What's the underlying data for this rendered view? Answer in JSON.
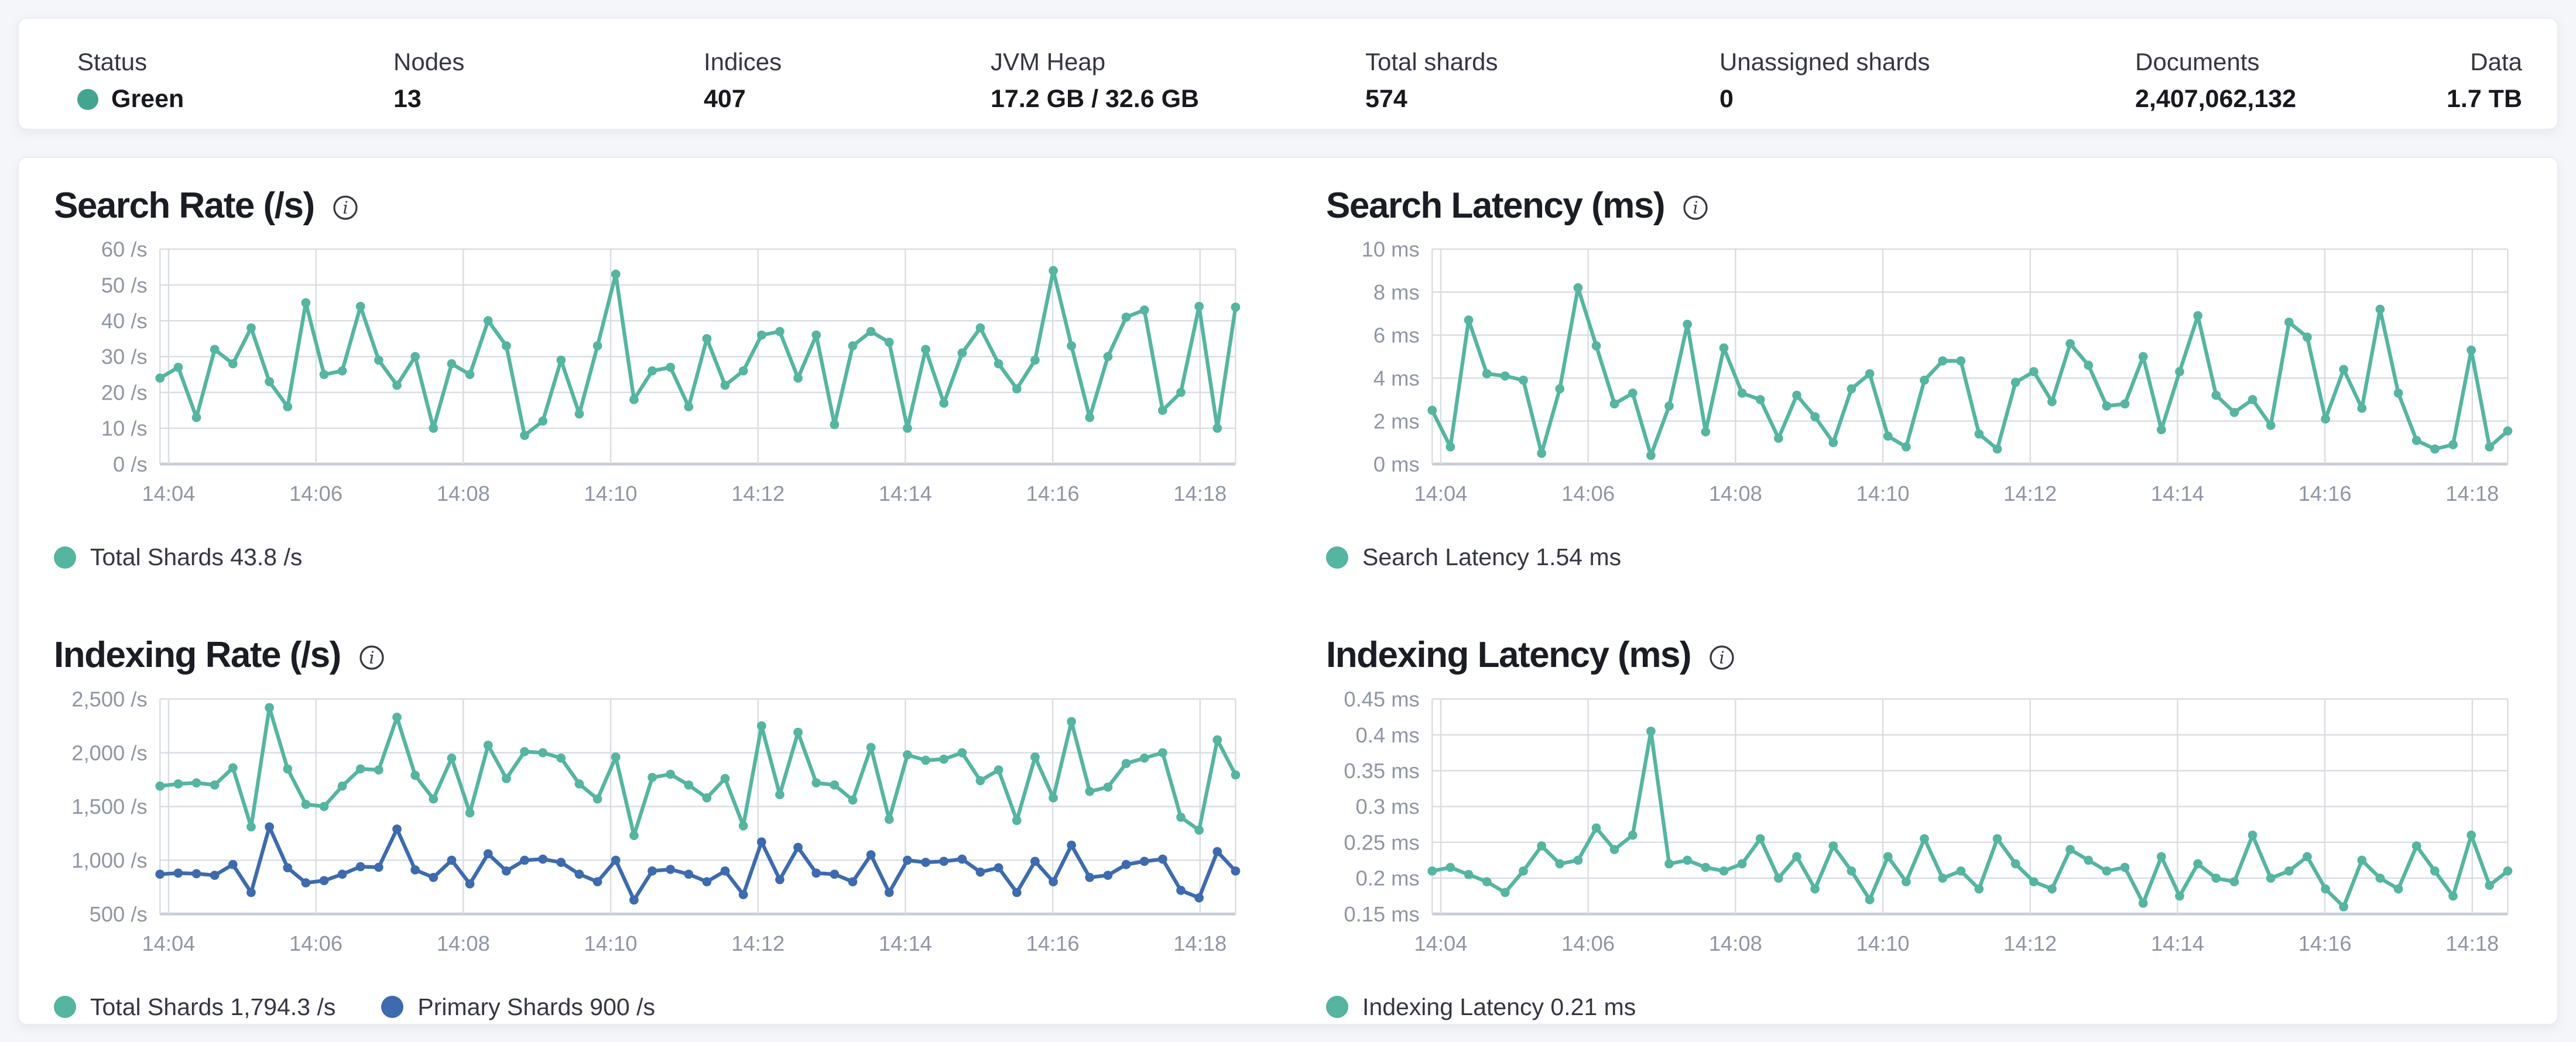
{
  "header": {
    "stats": [
      {
        "label": "Status",
        "value": "Green",
        "type": "status"
      },
      {
        "label": "Nodes",
        "value": "13"
      },
      {
        "label": "Indices",
        "value": "407"
      },
      {
        "label": "JVM Heap",
        "value": "17.2 GB / 32.6 GB"
      },
      {
        "label": "Total shards",
        "value": "574"
      },
      {
        "label": "Unassigned shards",
        "value": "0"
      },
      {
        "label": "Documents",
        "value": "2,407,062,132"
      },
      {
        "label": "Data",
        "value": "1.7 TB"
      }
    ]
  },
  "icons": {
    "info_icon": "circled-i",
    "status_icon": "health-dot"
  },
  "colors": {
    "teal": "#55B5A0",
    "blue": "#3D6BAD",
    "status_green": "#43A58F",
    "grid": "#D9DDE3",
    "axis": "#C7CDD7",
    "tick_text": "#8E96A3"
  },
  "chart_data": [
    {
      "type": "line",
      "title": "Search Rate (/s)",
      "x_ticks": {
        "labels": [
          "14:04",
          "14:06",
          "14:08",
          "14:10",
          "14:12",
          "14:14",
          "14:16",
          "14:18"
        ],
        "fractions": [
          0.008,
          0.145,
          0.282,
          0.419,
          0.556,
          0.693,
          0.83,
          0.967
        ]
      },
      "y_axis": {
        "min": 0,
        "max": 60,
        "tick_labels": [
          "60 /s",
          "50 /s",
          "40 /s",
          "30 /s",
          "20 /s",
          "10 /s",
          "0 /s"
        ]
      },
      "grid": true,
      "legend_position": "bottom",
      "series": [
        {
          "name": "Total Shards",
          "legend": "Total Shards 43.8 /s",
          "color_key": "teal",
          "values": [
            24,
            27,
            13,
            32,
            28,
            38,
            23,
            16,
            45,
            25,
            26,
            44,
            29,
            22,
            30,
            10,
            28,
            25,
            40,
            33,
            8,
            12,
            29,
            14,
            33,
            53,
            18,
            26,
            27,
            16,
            35,
            22,
            26,
            36,
            37,
            24,
            36,
            11,
            33,
            37,
            34,
            10,
            32,
            17,
            31,
            38,
            28,
            21,
            29,
            54,
            33,
            13,
            30,
            41,
            43,
            15,
            20,
            44,
            10,
            43.8
          ]
        }
      ]
    },
    {
      "type": "line",
      "title": "Search Latency (ms)",
      "x_ticks": {
        "labels": [
          "14:04",
          "14:06",
          "14:08",
          "14:10",
          "14:12",
          "14:14",
          "14:16",
          "14:18"
        ],
        "fractions": [
          0.008,
          0.145,
          0.282,
          0.419,
          0.556,
          0.693,
          0.83,
          0.967
        ]
      },
      "y_axis": {
        "min": 0,
        "max": 10,
        "tick_labels": [
          "10 ms",
          "8 ms",
          "6 ms",
          "4 ms",
          "2 ms",
          "0 ms"
        ]
      },
      "grid": true,
      "legend_position": "bottom",
      "series": [
        {
          "name": "Search Latency",
          "legend": "Search Latency 1.54 ms",
          "color_key": "teal",
          "values": [
            2.5,
            0.8,
            6.7,
            4.2,
            4.1,
            3.9,
            0.5,
            3.5,
            8.2,
            5.5,
            2.8,
            3.3,
            0.4,
            2.7,
            6.5,
            1.5,
            5.4,
            3.3,
            3.0,
            1.2,
            3.2,
            2.2,
            1.0,
            3.5,
            4.2,
            1.3,
            0.8,
            3.9,
            4.8,
            4.8,
            1.4,
            0.7,
            3.8,
            4.3,
            2.9,
            5.6,
            4.6,
            2.7,
            2.8,
            5.0,
            1.6,
            4.3,
            6.9,
            3.2,
            2.4,
            3.0,
            1.8,
            6.6,
            5.9,
            2.1,
            4.4,
            2.6,
            7.2,
            3.3,
            1.1,
            0.7,
            0.9,
            5.3,
            0.8,
            1.54
          ]
        }
      ]
    },
    {
      "type": "line",
      "title": "Indexing Rate (/s)",
      "x_ticks": {
        "labels": [
          "14:04",
          "14:06",
          "14:08",
          "14:10",
          "14:12",
          "14:14",
          "14:16",
          "14:18"
        ],
        "fractions": [
          0.008,
          0.145,
          0.282,
          0.419,
          0.556,
          0.693,
          0.83,
          0.967
        ]
      },
      "y_axis": {
        "min": 500,
        "max": 2500,
        "tick_labels": [
          "2,500 /s",
          "2,000 /s",
          "1,500 /s",
          "1,000 /s",
          "500 /s"
        ]
      },
      "grid": true,
      "legend_position": "bottom",
      "series": [
        {
          "name": "Total Shards",
          "legend": "Total Shards 1,794.3 /s",
          "color_key": "teal",
          "values": [
            1690,
            1710,
            1720,
            1700,
            1860,
            1310,
            2420,
            1850,
            1520,
            1500,
            1690,
            1850,
            1840,
            2330,
            1790,
            1570,
            1950,
            1440,
            2070,
            1760,
            2010,
            2000,
            1950,
            1710,
            1570,
            1960,
            1230,
            1770,
            1800,
            1700,
            1580,
            1760,
            1320,
            2250,
            1610,
            2190,
            1720,
            1700,
            1560,
            2050,
            1380,
            1980,
            1930,
            1940,
            2000,
            1740,
            1840,
            1370,
            1960,
            1580,
            2290,
            1640,
            1680,
            1900,
            1950,
            2000,
            1400,
            1280,
            2120,
            1794.3
          ]
        },
        {
          "name": "Primary Shards",
          "legend": "Primary Shards 900 /s",
          "color_key": "blue",
          "values": [
            870,
            880,
            875,
            860,
            960,
            700,
            1310,
            930,
            790,
            810,
            870,
            940,
            935,
            1290,
            910,
            840,
            1000,
            780,
            1060,
            900,
            1000,
            1010,
            980,
            870,
            800,
            1000,
            630,
            900,
            915,
            870,
            800,
            900,
            680,
            1170,
            820,
            1120,
            880,
            870,
            800,
            1050,
            700,
            1000,
            980,
            990,
            1010,
            890,
            930,
            700,
            990,
            800,
            1140,
            840,
            860,
            960,
            990,
            1010,
            720,
            650,
            1080,
            900
          ]
        }
      ]
    },
    {
      "type": "line",
      "title": "Indexing Latency (ms)",
      "x_ticks": {
        "labels": [
          "14:04",
          "14:06",
          "14:08",
          "14:10",
          "14:12",
          "14:14",
          "14:16",
          "14:18"
        ],
        "fractions": [
          0.008,
          0.145,
          0.282,
          0.419,
          0.556,
          0.693,
          0.83,
          0.967
        ]
      },
      "y_axis": {
        "min": 0.15,
        "max": 0.45,
        "tick_labels": [
          "0.45 ms",
          "0.4 ms",
          "0.35 ms",
          "0.3 ms",
          "0.25 ms",
          "0.2 ms",
          "0.15 ms"
        ]
      },
      "grid": true,
      "legend_position": "bottom",
      "series": [
        {
          "name": "Indexing Latency",
          "legend": "Indexing Latency 0.21 ms",
          "color_key": "teal",
          "values": [
            0.21,
            0.215,
            0.205,
            0.195,
            0.18,
            0.21,
            0.245,
            0.22,
            0.225,
            0.27,
            0.24,
            0.26,
            0.405,
            0.22,
            0.225,
            0.215,
            0.21,
            0.22,
            0.255,
            0.2,
            0.23,
            0.185,
            0.245,
            0.21,
            0.17,
            0.23,
            0.195,
            0.255,
            0.2,
            0.21,
            0.185,
            0.255,
            0.22,
            0.195,
            0.185,
            0.24,
            0.225,
            0.21,
            0.215,
            0.165,
            0.23,
            0.175,
            0.22,
            0.2,
            0.195,
            0.26,
            0.2,
            0.21,
            0.23,
            0.185,
            0.16,
            0.225,
            0.2,
            0.185,
            0.245,
            0.21,
            0.175,
            0.26,
            0.19,
            0.21
          ]
        }
      ]
    }
  ]
}
